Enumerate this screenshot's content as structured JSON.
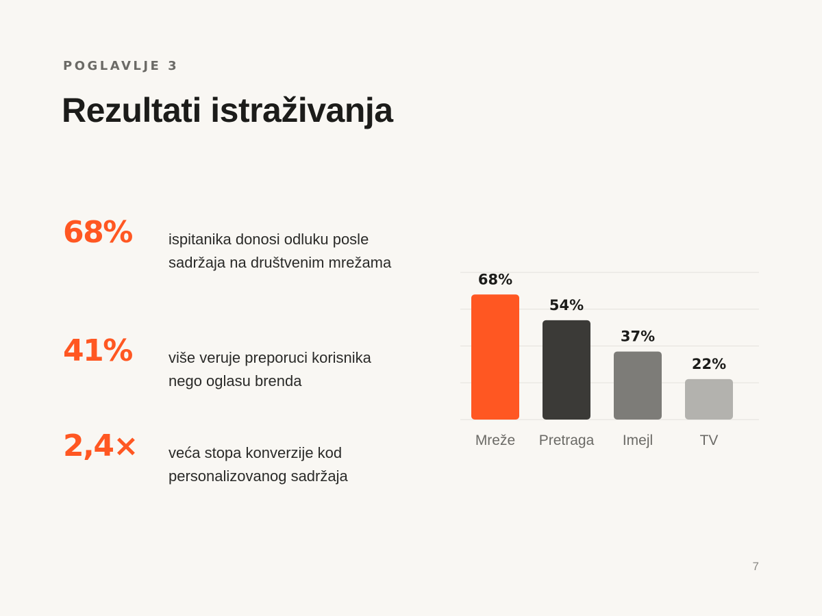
{
  "header": {
    "eyebrow": "POGLAVLJE 3",
    "title": "Rezultati istraživanja"
  },
  "stats": [
    {
      "value": "68%",
      "description": "ispitanika donosi odluku posle sadržaja na društvenim mrežama"
    },
    {
      "value": "41%",
      "description": "više veruje preporuci korisnika nego oglasu brenda"
    },
    {
      "value": "2,4×",
      "description": "veća stopa konverzije kod personalizovanog sadržaja"
    }
  ],
  "footer": {
    "page_number": "7"
  },
  "chart_data": {
    "type": "bar",
    "categories": [
      "Mreže",
      "Pretraga",
      "Imejl",
      "TV"
    ],
    "values": [
      68,
      54,
      37,
      22
    ],
    "value_labels": [
      "68%",
      "54%",
      "37%",
      "22%"
    ],
    "ylim": [
      0,
      80
    ],
    "grid": true,
    "colors": [
      "#ff5722",
      "#3b3a37",
      "#7d7c78",
      "#b3b2ae"
    ],
    "grid_color": "#e4e1dc"
  }
}
